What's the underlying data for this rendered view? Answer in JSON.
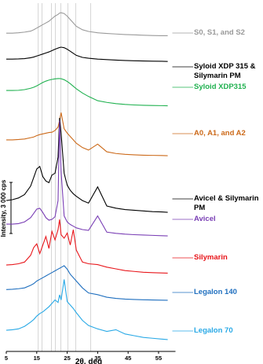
{
  "chart_data": {
    "type": "line",
    "x_label": "2θ, deg",
    "y_label": "Intensity, 3 000 cps",
    "scale_bar": 3000,
    "xlim": [
      5,
      59
    ],
    "xticks": [
      5,
      15,
      25,
      35,
      45,
      55
    ],
    "reference_lines": [
      15.5,
      16.7,
      19.8,
      21.1,
      22.9,
      25.2,
      27.8,
      32.7
    ],
    "x": [
      5,
      7,
      9,
      11,
      13,
      14,
      15,
      16,
      17,
      18,
      19,
      20,
      21,
      22,
      22.5,
      23,
      24,
      25,
      26,
      27,
      28,
      30,
      32,
      35,
      38,
      41,
      44,
      47,
      50,
      53,
      56,
      58
    ],
    "series": [
      {
        "name": "S0, S1, and S2",
        "color": "#9a9a9a",
        "values": [
          500,
          500,
          520,
          560,
          620,
          700,
          800,
          900,
          1000,
          1100,
          1200,
          1350,
          1500,
          1600,
          1680,
          1700,
          1650,
          1500,
          1300,
          1100,
          900,
          700,
          600,
          520,
          480,
          450,
          420,
          400,
          380,
          360,
          350,
          350
        ]
      },
      {
        "name": "Syloid XDP 315 & Silymarin PM",
        "color": "#000000",
        "values": [
          500,
          500,
          510,
          530,
          580,
          620,
          680,
          740,
          800,
          860,
          920,
          1000,
          1080,
          1150,
          1180,
          1200,
          1170,
          1080,
          960,
          840,
          720,
          600,
          550,
          500,
          470,
          440,
          420,
          400,
          390,
          380,
          370,
          360
        ]
      },
      {
        "name": "Syloid XDP315",
        "color": "#1fb14f",
        "values": [
          1150,
          1150,
          1160,
          1200,
          1280,
          1340,
          1420,
          1520,
          1620,
          1700,
          1760,
          1800,
          1830,
          1850,
          1850,
          1840,
          1780,
          1680,
          1550,
          1400,
          1250,
          1000,
          800,
          550,
          450,
          380,
          330,
          300,
          280,
          270,
          260,
          250
        ]
      },
      {
        "name": "A0, A1, and A2",
        "color": "#cc6a1a",
        "values": [
          1250,
          1250,
          1270,
          1300,
          1380,
          1420,
          1500,
          1560,
          1600,
          1640,
          1680,
          1700,
          1800,
          2000,
          2400,
          2850,
          1900,
          1650,
          1450,
          1250,
          1050,
          800,
          650,
          1000,
          550,
          450,
          400,
          370,
          350,
          340,
          330,
          320
        ]
      },
      {
        "name": "Avicel & Silymarin PM",
        "color": "#000000",
        "values": [
          1150,
          1200,
          1300,
          1500,
          2000,
          2500,
          3000,
          3150,
          2550,
          2300,
          2200,
          2650,
          2750,
          3700,
          6000,
          5100,
          2750,
          2050,
          1750,
          1550,
          1400,
          1150,
          1000,
          1950,
          830,
          700,
          620,
          580,
          540,
          500,
          480,
          460
        ]
      },
      {
        "name": "Avicel",
        "color": "#7a3fb5",
        "values": [
          920,
          920,
          950,
          1050,
          1300,
          1550,
          1800,
          1850,
          1600,
          1300,
          1150,
          1200,
          1350,
          2300,
          7000,
          4000,
          1400,
          1050,
          900,
          800,
          700,
          600,
          550,
          1400,
          450,
          380,
          330,
          300,
          280,
          260,
          240,
          230
        ]
      },
      {
        "name": "Silymarin",
        "color": "#e8161b",
        "values": [
          830,
          850,
          900,
          1000,
          1400,
          1850,
          2070,
          1500,
          2000,
          2500,
          1800,
          2800,
          2300,
          2900,
          3500,
          2600,
          2400,
          2700,
          2000,
          2900,
          1700,
          1000,
          900,
          850,
          700,
          600,
          500,
          450,
          400,
          380,
          360,
          350
        ]
      },
      {
        "name": "Legalon 140",
        "color": "#1f6fbf",
        "values": [
          1000,
          1020,
          1050,
          1100,
          1250,
          1350,
          1500,
          1600,
          1700,
          1800,
          1900,
          2000,
          2100,
          2200,
          2250,
          2300,
          2400,
          2200,
          1900,
          1700,
          1500,
          1100,
          800,
          700,
          550,
          480,
          440,
          420,
          400,
          390,
          380,
          370
        ]
      },
      {
        "name": "Legalon 70",
        "color": "#29a9e6",
        "values": [
          920,
          950,
          1000,
          1150,
          1400,
          1550,
          1750,
          1900,
          2000,
          2150,
          2300,
          2500,
          2700,
          2550,
          3000,
          2700,
          3900,
          2600,
          2400,
          2200,
          1950,
          1500,
          1200,
          1000,
          850,
          950,
          700,
          600,
          500,
          450,
          400,
          370
        ]
      }
    ]
  }
}
